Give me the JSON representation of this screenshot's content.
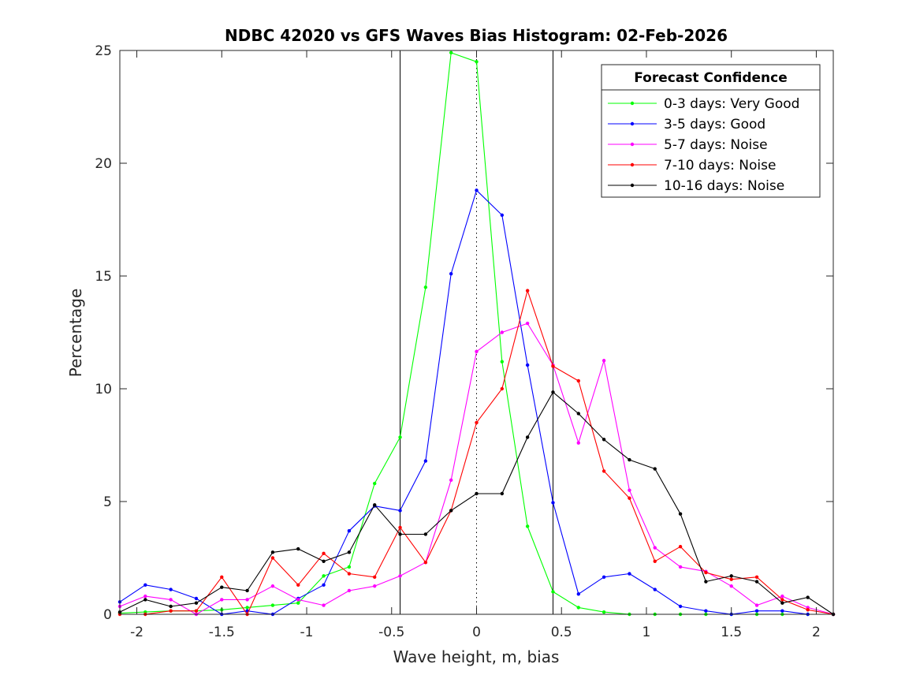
{
  "chart_data": {
    "type": "line",
    "title": "NDBC 42020 vs GFS Waves Bias Histogram: 02-Feb-2026",
    "xlabel": "Wave height, m, bias",
    "ylabel": "Percentage",
    "xlim": [
      -2.1,
      2.1
    ],
    "ylim": [
      0,
      25
    ],
    "xticks": [
      -2,
      -1.5,
      -1,
      -0.5,
      0,
      0.5,
      1,
      1.5,
      2
    ],
    "xtick_labels": [
      "-2",
      "-1.5",
      "-1",
      "-0.5",
      "0",
      "0.5",
      "1",
      "1.5",
      "2"
    ],
    "yticks": [
      0,
      5,
      10,
      15,
      20,
      25
    ],
    "ytick_labels": [
      "0",
      "5",
      "10",
      "15",
      "20",
      "25"
    ],
    "grid": false,
    "legend": {
      "title": "Forecast Confidence",
      "position": "top-right"
    },
    "reference_lines": [
      {
        "x": -0.45,
        "style": "solid",
        "color": "#000000"
      },
      {
        "x": 0,
        "style": "dotted",
        "color": "#000000"
      },
      {
        "x": 0.45,
        "style": "solid",
        "color": "#000000"
      }
    ],
    "x": [
      -2.1,
      -1.95,
      -1.8,
      -1.65,
      -1.5,
      -1.35,
      -1.2,
      -1.05,
      -0.9,
      -0.75,
      -0.6,
      -0.45,
      -0.3,
      -0.15,
      0,
      0.15,
      0.3,
      0.45,
      0.6,
      0.75,
      0.9,
      1.05,
      1.2,
      1.35,
      1.5,
      1.65,
      1.8,
      1.95,
      2.1
    ],
    "series": [
      {
        "name": "0-3 days: Very Good",
        "color": "#00ff00",
        "values": [
          0.05,
          0.1,
          0.15,
          0.15,
          0.2,
          0.3,
          0.4,
          0.5,
          1.7,
          2.1,
          5.8,
          7.85,
          14.5,
          24.9,
          24.5,
          11.2,
          3.9,
          1.0,
          0.3,
          0.1,
          0.0,
          0.0,
          0.0,
          0.0,
          0.0,
          0.0,
          0.0,
          0.0,
          0.0
        ]
      },
      {
        "name": "3-5 days: Good",
        "color": "#0000ff",
        "values": [
          0.55,
          1.3,
          1.1,
          0.7,
          0.0,
          0.15,
          0.0,
          0.7,
          1.3,
          3.7,
          4.8,
          4.6,
          6.8,
          15.1,
          18.8,
          17.7,
          11.05,
          4.95,
          0.9,
          1.65,
          1.8,
          1.1,
          0.35,
          0.15,
          0.0,
          0.15,
          0.15,
          0.0,
          0.0
        ]
      },
      {
        "name": "5-7 days: Noise",
        "color": "#ff00ff",
        "values": [
          0.35,
          0.8,
          0.65,
          0.0,
          0.65,
          0.65,
          1.25,
          0.65,
          0.4,
          1.05,
          1.25,
          1.7,
          2.3,
          5.95,
          11.65,
          12.5,
          12.9,
          11.05,
          7.6,
          11.25,
          5.5,
          2.95,
          2.1,
          1.9,
          1.25,
          0.4,
          0.8,
          0.3,
          0.0
        ]
      },
      {
        "name": "7-10 days: Noise",
        "color": "#ff0000",
        "values": [
          0.0,
          0.0,
          0.15,
          0.15,
          1.65,
          0.0,
          2.5,
          1.3,
          2.7,
          1.8,
          1.65,
          3.85,
          2.3,
          4.6,
          8.5,
          10.0,
          14.35,
          11.0,
          10.35,
          6.35,
          5.15,
          2.35,
          3.0,
          1.85,
          1.55,
          1.65,
          0.65,
          0.2,
          0.0
        ]
      },
      {
        "name": "10-16 days: Noise",
        "color": "#000000",
        "values": [
          0.1,
          0.65,
          0.35,
          0.5,
          1.2,
          1.05,
          2.75,
          2.9,
          2.35,
          2.75,
          4.85,
          3.55,
          3.55,
          4.6,
          5.35,
          5.35,
          7.85,
          9.85,
          8.9,
          7.75,
          6.85,
          6.45,
          4.45,
          1.45,
          1.7,
          1.45,
          0.5,
          0.75,
          0.0
        ]
      }
    ]
  }
}
